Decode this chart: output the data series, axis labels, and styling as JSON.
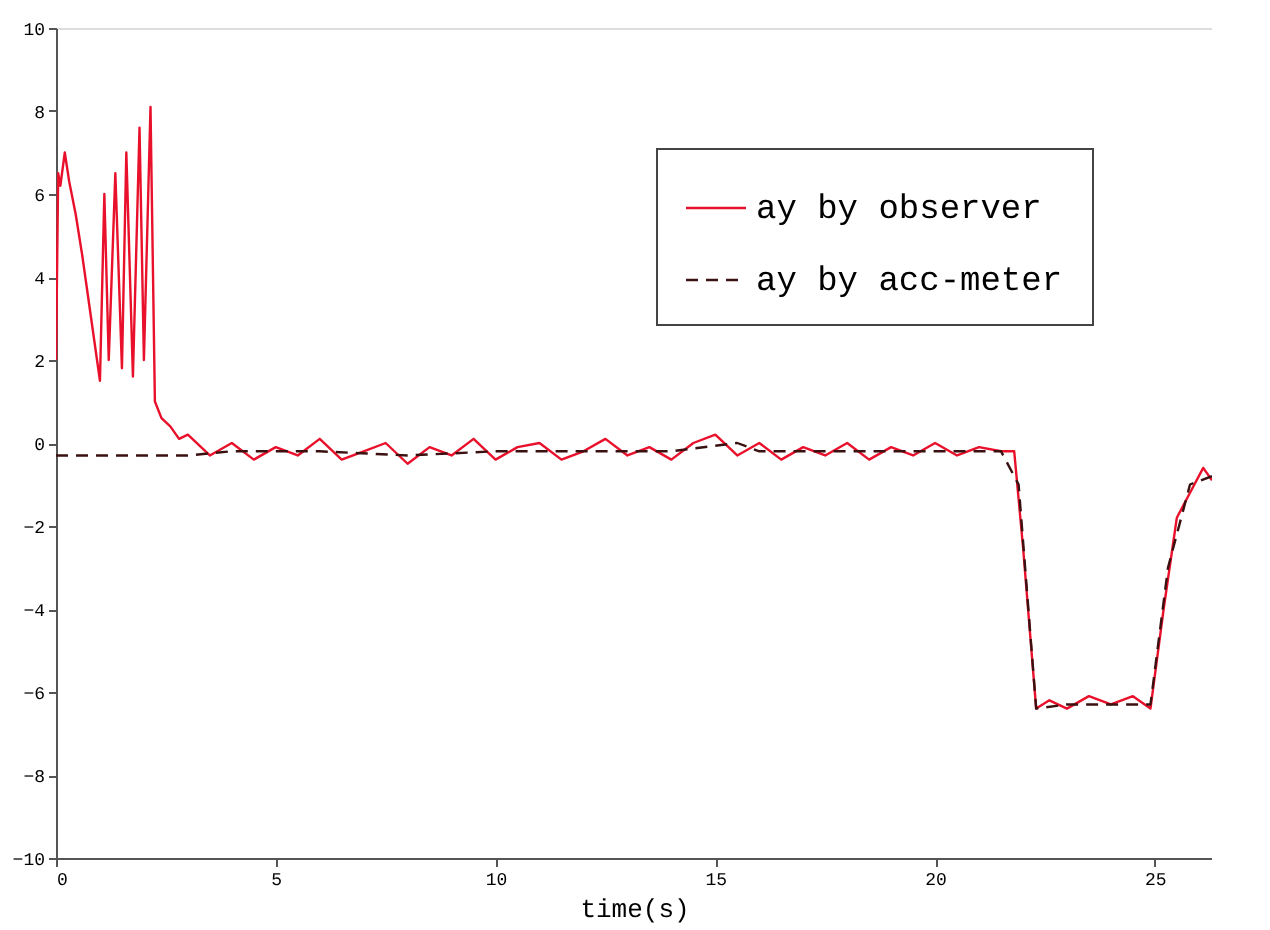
{
  "chart_data": {
    "type": "line",
    "xlabel": "time(s)",
    "xlim": [
      0,
      26.3
    ],
    "xticks": [
      0,
      5,
      10,
      15,
      20,
      25
    ],
    "ylim": [
      -10,
      10
    ],
    "yticks": [
      -10,
      -8,
      -6,
      -4,
      -2,
      0,
      2,
      4,
      6,
      8,
      10
    ],
    "grid": false,
    "legend": "top right",
    "marker": "none",
    "series": [
      {
        "name": "ay by observer",
        "color": "#e8102a",
        "line_style": "solid",
        "x": [
          0,
          0.05,
          0.1,
          0.2,
          0.3,
          0.45,
          0.6,
          0.8,
          1.0,
          1.1,
          1.2,
          1.35,
          1.5,
          1.6,
          1.75,
          1.9,
          2.0,
          2.15,
          2.25,
          2.4,
          2.6,
          2.8,
          3.0,
          3.5,
          4,
          4.5,
          5,
          5.5,
          6,
          6.5,
          7,
          7.5,
          8,
          8.5,
          9,
          9.5,
          10,
          10.5,
          11,
          11.5,
          12,
          12.5,
          13,
          13.5,
          14,
          14.5,
          15,
          15.5,
          16,
          16.5,
          17,
          17.5,
          18,
          18.5,
          19,
          19.5,
          20,
          20.5,
          21,
          21.5,
          21.8,
          22.0,
          22.3,
          22.6,
          23,
          23.5,
          24,
          24.5,
          24.9,
          25.2,
          25.5,
          25.8,
          26.1,
          26.3
        ],
        "values": [
          2,
          6.5,
          6.2,
          7,
          6.3,
          5.5,
          4.5,
          3,
          1.5,
          6,
          2,
          6.5,
          1.8,
          7,
          1.6,
          7.6,
          2,
          8.1,
          1,
          0.6,
          0.4,
          0.1,
          0.2,
          -0.3,
          0,
          -0.4,
          -0.1,
          -0.3,
          0.1,
          -0.4,
          -0.2,
          0,
          -0.5,
          -0.1,
          -0.3,
          0.1,
          -0.4,
          -0.1,
          0,
          -0.4,
          -0.2,
          0.1,
          -0.3,
          -0.1,
          -0.4,
          0,
          0.2,
          -0.3,
          0,
          -0.4,
          -0.1,
          -0.3,
          0,
          -0.4,
          -0.1,
          -0.3,
          0,
          -0.3,
          -0.1,
          -0.2,
          -0.2,
          -2.5,
          -6.4,
          -6.2,
          -6.4,
          -6.1,
          -6.3,
          -6.1,
          -6.4,
          -4,
          -1.8,
          -1.2,
          -0.6,
          -0.9
        ]
      },
      {
        "name": "ay by acc-meter",
        "color": "#3a1010",
        "line_style": "dashed",
        "x": [
          0,
          1,
          2,
          3,
          4,
          6,
          8,
          10,
          12,
          14,
          15.5,
          16,
          18,
          20,
          21.5,
          21.9,
          22.3,
          23,
          24,
          24.9,
          25.3,
          25.8,
          26.3
        ],
        "values": [
          -0.3,
          -0.3,
          -0.3,
          -0.3,
          -0.2,
          -0.2,
          -0.3,
          -0.2,
          -0.2,
          -0.2,
          0,
          -0.2,
          -0.2,
          -0.2,
          -0.2,
          -1,
          -6.4,
          -6.3,
          -6.3,
          -6.3,
          -3,
          -1,
          -0.8
        ]
      }
    ]
  }
}
